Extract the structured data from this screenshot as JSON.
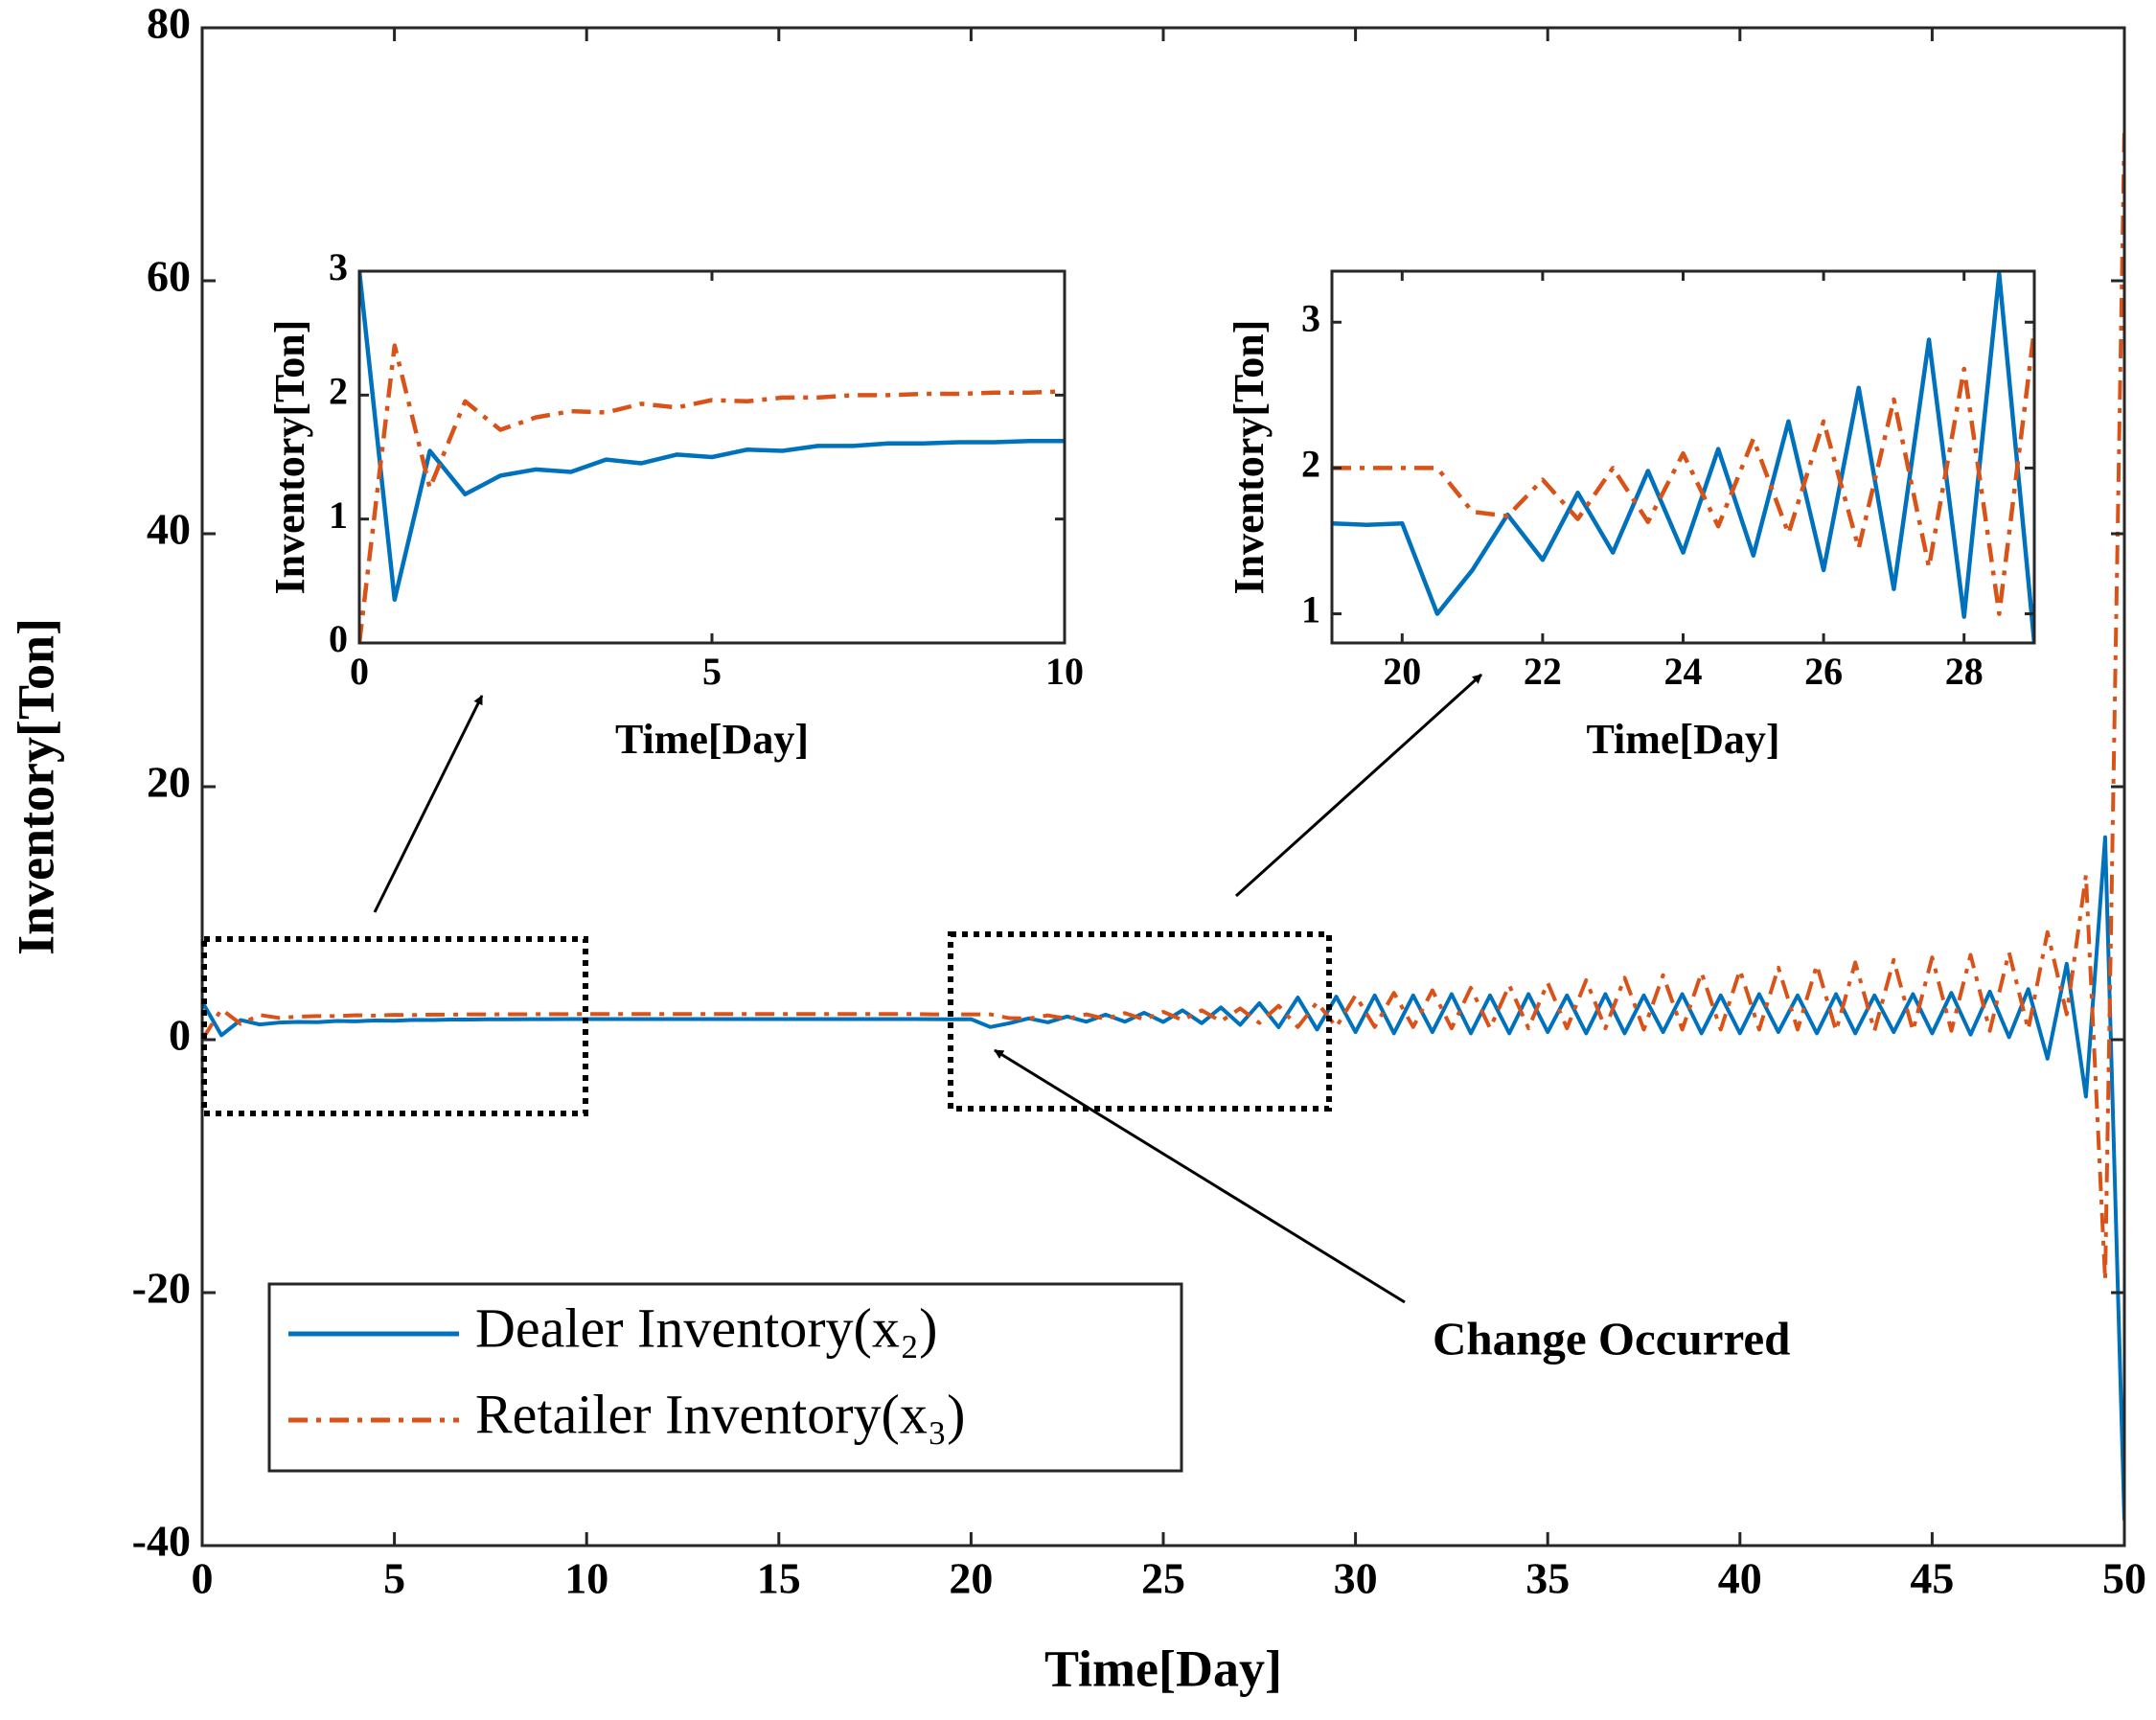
{
  "chart_data": [
    {
      "type": "line",
      "xlabel": "Time[Day]",
      "ylabel": "Inventory[Ton]",
      "xlim": [
        0,
        50
      ],
      "ylim": [
        -40,
        80
      ],
      "xticks": [
        0,
        5,
        10,
        15,
        20,
        25,
        30,
        35,
        40,
        45,
        50
      ],
      "yticks": [
        -40,
        -20,
        0,
        20,
        40,
        60,
        80
      ],
      "legend": "lower left",
      "annotation": "Change Occurred",
      "x": [
        0,
        0.5,
        1,
        1.5,
        2,
        2.5,
        3,
        3.5,
        4,
        4.5,
        5,
        5.5,
        6,
        6.5,
        7,
        7.5,
        8,
        8.5,
        9,
        9.5,
        10,
        10.5,
        11,
        11.5,
        12,
        12.5,
        13,
        13.5,
        14,
        14.5,
        15,
        15.5,
        16,
        16.5,
        17,
        17.5,
        18,
        18.5,
        19,
        19.5,
        20,
        20.5,
        21,
        21.5,
        22,
        22.5,
        23,
        23.5,
        24,
        24.5,
        25,
        25.5,
        26,
        26.5,
        27,
        27.5,
        28,
        28.5,
        29,
        29.5,
        30,
        30.5,
        31,
        31.5,
        32,
        32.5,
        33,
        33.5,
        34,
        34.5,
        35,
        35.5,
        36,
        36.5,
        37,
        37.5,
        38,
        38.5,
        39,
        39.5,
        40,
        40.5,
        41,
        41.5,
        42,
        42.5,
        43,
        43.5,
        44,
        44.5,
        45,
        45.5,
        46,
        46.5,
        47,
        47.5,
        48,
        48.5,
        49,
        49.5,
        50
      ],
      "series": [
        {
          "name": "Dealer Inventory(x₂)",
          "color": "#0072bd",
          "linestyle": "solid",
          "values": [
            3,
            0.35,
            1.55,
            1.2,
            1.35,
            1.4,
            1.38,
            1.48,
            1.45,
            1.52,
            1.5,
            1.56,
            1.55,
            1.59,
            1.59,
            1.61,
            1.61,
            1.62,
            1.62,
            1.63,
            1.63,
            1.63,
            1.63,
            1.63,
            1.63,
            1.63,
            1.63,
            1.63,
            1.63,
            1.63,
            1.63,
            1.63,
            1.63,
            1.63,
            1.63,
            1.63,
            1.63,
            1.63,
            1.62,
            1.61,
            1.62,
            1.0,
            1.3,
            1.68,
            1.37,
            1.83,
            1.42,
            1.98,
            1.42,
            2.13,
            1.4,
            2.32,
            1.3,
            2.55,
            1.17,
            2.88,
            0.98,
            3.33,
            0.8,
            3.4,
            0.6,
            3.5,
            0.5,
            3.5,
            0.6,
            3.6,
            0.5,
            3.5,
            0.5,
            3.6,
            0.6,
            3.5,
            0.5,
            3.6,
            0.5,
            3.5,
            0.6,
            3.6,
            0.5,
            3.5,
            0.5,
            3.6,
            0.6,
            3.5,
            0.5,
            3.6,
            0.5,
            3.5,
            0.6,
            3.6,
            0.5,
            3.7,
            0.4,
            3.8,
            0.2,
            4,
            -1.5,
            6,
            -4.5,
            16,
            -38
          ]
        },
        {
          "name": "Retailer Inventory(x₃)",
          "color": "#d95319",
          "linestyle": "dashdot",
          "values": [
            0,
            2.4,
            1.25,
            1.95,
            1.72,
            1.82,
            1.87,
            1.86,
            1.93,
            1.9,
            1.96,
            1.95,
            1.98,
            1.98,
            2,
            2,
            2.01,
            2.01,
            2.02,
            2.02,
            2.03,
            2.03,
            2.03,
            2.03,
            2.03,
            2.03,
            2.03,
            2.03,
            2.03,
            2.03,
            2.03,
            2.03,
            2.03,
            2.03,
            2.03,
            2.03,
            2.03,
            2.03,
            2,
            2,
            2,
            2,
            1.7,
            1.67,
            1.92,
            1.65,
            2,
            1.63,
            2.1,
            1.6,
            2.2,
            1.55,
            2.32,
            1.45,
            2.47,
            1.32,
            2.68,
            1,
            2.95,
            1.0,
            3.5,
            1.0,
            3.7,
            1.0,
            3.9,
            0.9,
            4.1,
            0.9,
            4.3,
            0.9,
            4.5,
            0.9,
            4.7,
            0.9,
            4.9,
            0.8,
            5.1,
            0.8,
            5.3,
            0.8,
            5.5,
            0.8,
            5.7,
            0.8,
            5.9,
            0.7,
            6.1,
            0.7,
            6.3,
            0.7,
            6.5,
            0.7,
            6.7,
            0.7,
            6.9,
            0.8,
            8.5,
            2,
            13,
            -19,
            72
          ]
        }
      ]
    },
    {
      "type": "inset",
      "xlabel": "Time[Day]",
      "ylabel": "Inventory[Ton]",
      "xlim": [
        0,
        10
      ],
      "ylim": [
        0,
        3
      ],
      "xticks": [
        0,
        5,
        10
      ],
      "yticks": [
        0,
        1,
        2,
        3
      ]
    },
    {
      "type": "inset",
      "xlabel": "Time[Day]",
      "ylabel": "Inventory[Ton]",
      "xlim": [
        19,
        29
      ],
      "ylim": [
        0.8,
        3.35
      ],
      "xticks": [
        20,
        22,
        24,
        26,
        28
      ],
      "yticks": [
        1,
        2,
        3
      ]
    }
  ]
}
